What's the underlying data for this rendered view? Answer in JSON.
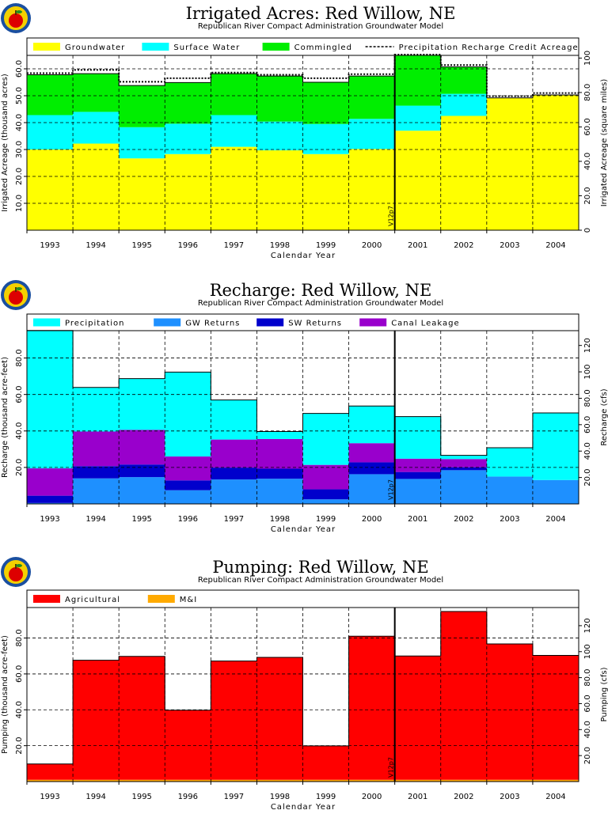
{
  "colors": {
    "groundwater": "#ffff00",
    "surface_water": "#00ffff",
    "commingled": "#00ee00",
    "precipitation": "#00ffff",
    "gw_returns": "#1e90ff",
    "sw_returns": "#0000cc",
    "canal_leakage": "#9900cc",
    "agricultural": "#ff0000",
    "mi": "#ffaa00",
    "grid": "#000000"
  },
  "chart_data": [
    {
      "type": "area",
      "title": "Irrigated Acres: Red Willow, NE",
      "subtitle": "Republican River Compact Administration Groundwater Model",
      "xlabel": "Calendar Year",
      "ylabel": "Irrigated Acreage (thousand acres)",
      "ylabel_right": "Irrigated Acreage (square miles)",
      "categories": [
        "1993",
        "1994",
        "1995",
        "1996",
        "1997",
        "1998",
        "1999",
        "2000",
        "2001",
        "2002",
        "2003",
        "2004"
      ],
      "ylim": [
        0,
        65
      ],
      "y_ticks": [
        "10.0",
        "20.0",
        "30.0",
        "40.0",
        "50.0",
        "60.0"
      ],
      "y_ticks_right": [
        "0",
        "20.0",
        "40.0",
        "60.0",
        "80.0",
        "100"
      ],
      "right_scale": 1.5625,
      "marker_label": "V12p7",
      "marker_after": "2000",
      "legend": [
        "Groundwater",
        "Surface Water",
        "Commingled",
        "Precipitation Recharge Credit Acreage"
      ],
      "series": [
        {
          "name": "Groundwater",
          "values": [
            30.0,
            32.2,
            26.7,
            28.3,
            31.0,
            29.7,
            28.3,
            30.2,
            37.0,
            42.5,
            49.2,
            50.3
          ]
        },
        {
          "name": "Surface Water",
          "values": [
            12.8,
            11.8,
            11.6,
            11.3,
            11.8,
            10.7,
            11.2,
            11.2,
            9.3,
            8.2,
            0,
            0
          ]
        },
        {
          "name": "Commingled",
          "values": [
            15.0,
            14.2,
            15.5,
            15.3,
            15.4,
            16.9,
            15.5,
            15.9,
            18.7,
            10.0,
            0,
            0
          ]
        }
      ],
      "precip_credit_line": [
        58.4,
        59.6,
        55.2,
        56.5,
        58.6,
        57.8,
        56.5,
        58.0,
        65.3,
        61.4,
        49.8,
        51.0
      ]
    },
    {
      "type": "area",
      "title": "Recharge: Red Willow, NE",
      "subtitle": "Republican River Compact Administration Groundwater Model",
      "xlabel": "Calendar Year",
      "ylabel": "Recharge (thousand acre-feet)",
      "ylabel_right": "Recharge (cfs)",
      "categories": [
        "1993",
        "1994",
        "1995",
        "1996",
        "1997",
        "1998",
        "1999",
        "2000",
        "2001",
        "2002",
        "2003",
        "2004"
      ],
      "ylim": [
        0,
        95
      ],
      "y_ticks": [
        "20.0",
        "40.0",
        "60.0",
        "80.0"
      ],
      "y_ticks_right": [
        "20.0",
        "40.0",
        "60.0",
        "80.0",
        "100",
        "120"
      ],
      "right_scale": 1.381,
      "marker_label": "V12p7",
      "marker_after": "2000",
      "legend": [
        "Precipitation",
        "GW Returns",
        "SW Returns",
        "Canal Leakage"
      ],
      "series": [
        {
          "name": "GW Returns",
          "values": [
            0.5,
            14.0,
            14.7,
            7.5,
            13.4,
            13.8,
            2.5,
            16.3,
            13.7,
            18.5,
            15.0,
            13.1
          ]
        },
        {
          "name": "SW Returns",
          "values": [
            4.0,
            6.7,
            6.9,
            5.4,
            6.5,
            5.5,
            5.5,
            6.5,
            3.8,
            1.6,
            0,
            0
          ]
        },
        {
          "name": "Canal Leakage",
          "values": [
            15.0,
            19.0,
            19.0,
            13.1,
            15.4,
            16.3,
            13.4,
            10.5,
            7.3,
            4.5,
            0,
            0
          ]
        },
        {
          "name": "Precipitation",
          "values": [
            75.6,
            24.2,
            28.1,
            46.3,
            21.7,
            4.1,
            28.2,
            20.4,
            23.1,
            2.0,
            15.8,
            36.8
          ]
        }
      ]
    },
    {
      "type": "area",
      "title": "Pumping: Red Willow, NE",
      "subtitle": "Republican River Compact Administration Groundwater Model",
      "xlabel": "Calendar Year",
      "ylabel": "Pumping (thousand acre-feet)",
      "ylabel_right": "Pumping (cfs)",
      "categories": [
        "1993",
        "1994",
        "1995",
        "1996",
        "1997",
        "1998",
        "1999",
        "2000",
        "2001",
        "2002",
        "2003",
        "2004"
      ],
      "ylim": [
        0,
        97
      ],
      "y_ticks": [
        "20.0",
        "40.0",
        "60.0",
        "80.0"
      ],
      "y_ticks_right": [
        "20.0",
        "40.0",
        "60.0",
        "80.0",
        "100",
        "120"
      ],
      "right_scale": 1.381,
      "marker_label": "V12p7",
      "marker_after": "2000",
      "legend": [
        "Agricultural",
        "M&I"
      ],
      "series": [
        {
          "name": "M&I",
          "values": [
            1.0,
            1.0,
            1.0,
            1.0,
            1.0,
            1.0,
            1.0,
            1.0,
            1.0,
            1.0,
            1.0,
            1.0
          ]
        },
        {
          "name": "Agricultural",
          "values": [
            8.8,
            66.6,
            68.8,
            38.8,
            66.2,
            68.2,
            18.9,
            80.0,
            69.0,
            93.8,
            75.7,
            69.3
          ]
        }
      ]
    }
  ]
}
